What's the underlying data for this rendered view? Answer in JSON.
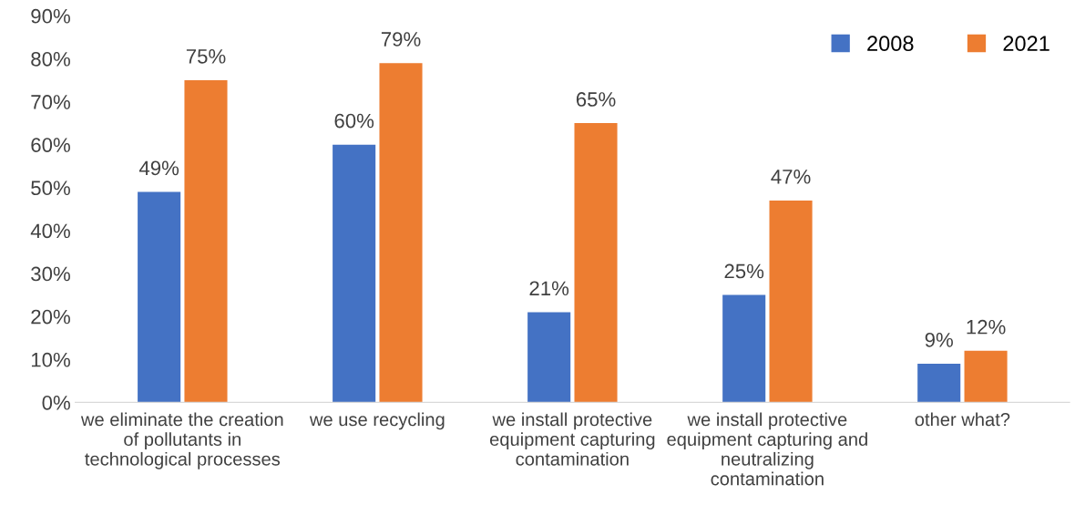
{
  "chart_data": {
    "type": "bar",
    "categories": [
      "we eliminate the creation\nof pollutants in\ntechnological processes",
      "we use recycling",
      "we install protective\nequipment capturing\ncontamination",
      "we install protective\nequipment capturing and\nneutralizing\ncontamination",
      "other what?"
    ],
    "series": [
      {
        "name": "2008",
        "color": "#4472c4",
        "values": [
          49,
          60,
          21,
          25,
          9
        ],
        "value_labels": [
          "49%",
          "60%",
          "21%",
          "25%",
          "9%"
        ]
      },
      {
        "name": "2021",
        "color": "#ed7d31",
        "values": [
          75,
          79,
          65,
          47,
          12
        ],
        "value_labels": [
          "75%",
          "79%",
          "65%",
          "47%",
          "12%"
        ]
      }
    ],
    "ylim": [
      0,
      90
    ],
    "yticks": [
      {
        "value": 0,
        "label": "0%"
      },
      {
        "value": 10,
        "label": "10%"
      },
      {
        "value": 20,
        "label": "20%"
      },
      {
        "value": 30,
        "label": "30%"
      },
      {
        "value": 40,
        "label": "40%"
      },
      {
        "value": 50,
        "label": "50%"
      },
      {
        "value": 60,
        "label": "60%"
      },
      {
        "value": 70,
        "label": "70%"
      },
      {
        "value": 80,
        "label": "80%"
      },
      {
        "value": 90,
        "label": "90%"
      }
    ],
    "legend": "top right",
    "grid": false
  }
}
